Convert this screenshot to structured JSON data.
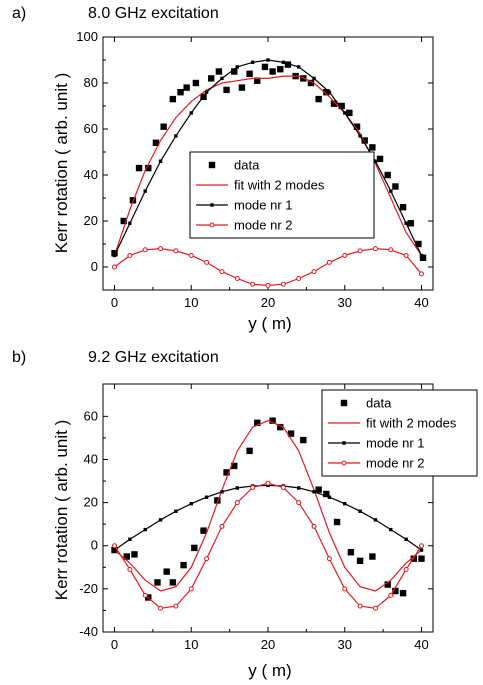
{
  "chart_data": [
    {
      "type": "scatter",
      "panel_label": "a)",
      "title": "8.0 GHz excitation",
      "xlabel": "y (  m)",
      "ylabel": "Kerr rotation ( arb. unit )",
      "xlim": [
        -1.5,
        41.5
      ],
      "ylim": [
        -10,
        100
      ],
      "xticks": [
        0,
        10,
        20,
        30,
        40
      ],
      "yticks": [
        0,
        20,
        40,
        60,
        80,
        100
      ],
      "legend_position": "center",
      "series": [
        {
          "name": "data",
          "kind": "markers",
          "color": "#000000",
          "x": [
            0,
            1.2,
            2.4,
            3.2,
            4.4,
            5.4,
            6.4,
            7.6,
            8.6,
            9.4,
            10.6,
            11.6,
            12.6,
            13.6,
            14.6,
            15.6,
            16.6,
            17.6,
            18.6,
            19.6,
            20.6,
            21.6,
            22.6,
            23.6,
            24.6,
            25.6,
            26.6,
            27.6,
            28.6,
            29.6,
            30.6,
            31.6,
            32.6,
            33.6,
            34.6,
            35.6,
            36.6,
            37.6,
            38.6,
            39.6,
            40.2
          ],
          "y": [
            6,
            20,
            29,
            43,
            43,
            54,
            61,
            73,
            76,
            78,
            80,
            74,
            82,
            85,
            77,
            85,
            78,
            84,
            81,
            87,
            85,
            86,
            88,
            83,
            82,
            80,
            73,
            76,
            71,
            70,
            67,
            61,
            55,
            52,
            47,
            40,
            35,
            26,
            19,
            10,
            4
          ]
        },
        {
          "name": "fit with 2 modes",
          "kind": "fit",
          "color": "#e31a1c",
          "x": [
            0,
            2,
            4,
            6,
            8,
            10,
            12,
            14,
            16,
            18,
            20,
            22,
            24,
            26,
            28,
            30,
            32,
            34,
            36,
            38,
            40
          ],
          "y": [
            5,
            25,
            42,
            55,
            65,
            72,
            77,
            80,
            81,
            82,
            82,
            83,
            83,
            80,
            74,
            67,
            58,
            45,
            30,
            15,
            5
          ]
        },
        {
          "name": "mode nr 1",
          "kind": "mode",
          "color": "#000000",
          "x": [
            0,
            2,
            4,
            6,
            8,
            10,
            12,
            14,
            16,
            18,
            20,
            22,
            24,
            26,
            28,
            30,
            32,
            34,
            36,
            38,
            40
          ],
          "y": [
            5,
            19,
            33,
            46,
            57,
            67,
            76,
            82,
            87,
            89,
            90,
            89,
            87,
            82,
            76,
            67,
            57,
            46,
            33,
            19,
            5
          ]
        },
        {
          "name": "mode nr 2",
          "kind": "mode-open",
          "color": "#e31a1c",
          "x": [
            0,
            2,
            4,
            6,
            8,
            10,
            12,
            14,
            16,
            18,
            20,
            22,
            24,
            26,
            28,
            30,
            32,
            34,
            36,
            38,
            40
          ],
          "y": [
            0,
            5,
            7.5,
            8,
            7,
            5,
            2,
            -2,
            -5,
            -7.5,
            -8,
            -7.5,
            -5,
            -2,
            2,
            5,
            7,
            8,
            7.5,
            5,
            -3
          ]
        }
      ]
    },
    {
      "type": "scatter",
      "panel_label": "b)",
      "title": "9.2 GHz excitation",
      "xlabel": "y (  m)",
      "ylabel": "Kerr rotation ( arb. unit )",
      "xlim": [
        -1.5,
        41.5
      ],
      "ylim": [
        -40,
        75
      ],
      "xticks": [
        0,
        10,
        20,
        30,
        40
      ],
      "yticks": [
        -40,
        -20,
        0,
        20,
        40,
        60
      ],
      "legend_position": "top-right",
      "series": [
        {
          "name": "data",
          "kind": "markers",
          "color": "#000000",
          "x": [
            0,
            1.6,
            2.6,
            4.4,
            5.6,
            6.8,
            7.6,
            9,
            10.4,
            11.6,
            13.4,
            14.6,
            15.6,
            17.6,
            18.6,
            20.6,
            21.6,
            23,
            24.6,
            26.6,
            27.6,
            29,
            30.8,
            32,
            33.6,
            35.6,
            36.6,
            37.6,
            39,
            40
          ],
          "y": [
            -2,
            -5,
            -4,
            -24,
            -17,
            -12,
            -17,
            -9,
            -1,
            7,
            21,
            34,
            37,
            44,
            57,
            58,
            55,
            52,
            49,
            26,
            24,
            11,
            -3,
            -7,
            -5,
            -18,
            -21,
            -22,
            -6,
            -6
          ]
        },
        {
          "name": "fit with 2 modes",
          "kind": "fit",
          "color": "#e31a1c",
          "x": [
            0,
            2,
            4,
            6,
            8,
            10,
            12,
            14,
            16,
            18,
            20,
            22,
            24,
            26,
            28,
            30,
            32,
            34,
            36,
            38,
            40
          ],
          "y": [
            -2,
            -8,
            -16,
            -21,
            -19,
            -10,
            6,
            26,
            44,
            55,
            58,
            55,
            44,
            26,
            6,
            -10,
            -19,
            -21,
            -16,
            -8,
            -2
          ]
        },
        {
          "name": "mode nr 1",
          "kind": "mode",
          "color": "#000000",
          "x": [
            0,
            2,
            4,
            6,
            8,
            10,
            12,
            14,
            16,
            18,
            20,
            22,
            24,
            26,
            28,
            30,
            32,
            34,
            36,
            38,
            40
          ],
          "y": [
            -2,
            3,
            7.5,
            12,
            16,
            19.5,
            22.5,
            25,
            26.8,
            27.7,
            28,
            27.7,
            26.8,
            25,
            22.5,
            19.5,
            16,
            12,
            7.5,
            3,
            -2
          ]
        },
        {
          "name": "mode nr 2",
          "kind": "mode-open",
          "color": "#e31a1c",
          "x": [
            0,
            2,
            4,
            6,
            8,
            10,
            12,
            14,
            16,
            18,
            20,
            22,
            24,
            26,
            28,
            30,
            32,
            34,
            36,
            38,
            40
          ],
          "y": [
            0,
            -11,
            -23,
            -29,
            -28,
            -20,
            -6,
            9,
            20,
            27,
            29,
            27,
            20,
            9,
            -6,
            -20,
            -28,
            -29,
            -23,
            -11,
            0
          ]
        }
      ]
    }
  ]
}
